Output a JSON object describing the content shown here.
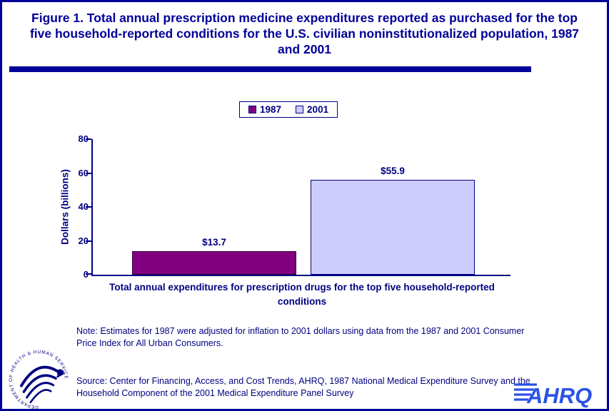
{
  "header": {
    "title": "Figure 1. Total annual prescription medicine expenditures reported as purchased for the top five household-reported conditions for the U.S. civilian noninstitutionalized population, 1987 and 2001"
  },
  "chart_data": {
    "type": "bar",
    "title": "Figure 1. Total annual prescription medicine expenditures reported as purchased for the top five household-reported conditions for the U.S. civilian noninstitutionalized population, 1987 and 2001",
    "categories": [
      "Total annual expenditures for prescription drugs for the top five household-reported conditions"
    ],
    "series": [
      {
        "name": "1987",
        "values": [
          13.7
        ],
        "label": "$13.7",
        "color": "#800080"
      },
      {
        "name": "2001",
        "values": [
          55.9
        ],
        "label": "$55.9",
        "color": "#CCCCFF"
      }
    ],
    "xlabel": "Total annual expenditures for prescription drugs for the top five household-reported conditions",
    "ylabel": "Dollars (billions)",
    "ylim": [
      0,
      80
    ],
    "yticks": [
      "80",
      "60",
      "40",
      "20",
      "0"
    ],
    "grid": false,
    "legend_position": "top-center"
  },
  "notes": {
    "note": "Note: Estimates for 1987 were adjusted for inflation to 2001 dollars using data from the 1987 and 2001 Consumer Price Index for All Urban Consumers.",
    "source": "Source: Center for Financing, Access, and Cost Trends, AHRQ, 1987 National Medical Expenditure Survey and the Household Component of the 2001 Medical Expenditure Panel Survey"
  },
  "logos": {
    "hhs": "DEPARTMENT OF HEALTH & HUMAN SERVICES · USA",
    "ahrq": "AHRQ"
  },
  "colors": {
    "accent_navy": "#000099",
    "text_navy": "#000080",
    "bar_1987": "#800080",
    "bar_2001": "#CCCCFF",
    "ahrq_blue": "#2A52E8"
  }
}
